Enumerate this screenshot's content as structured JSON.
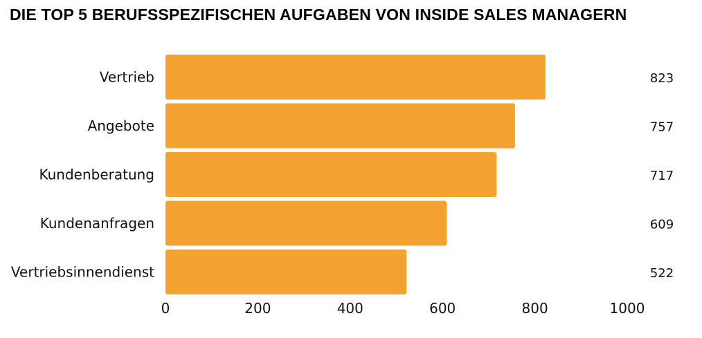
{
  "chart_data": {
    "type": "bar",
    "orientation": "horizontal",
    "title": "DIE TOP 5 BERUFSSPEZIFISCHEN AUFGABEN VON INSIDE SALES MANAGERN",
    "xlabel": "",
    "ylabel": "",
    "categories": [
      "Vertrieb",
      "Angebote",
      "Kundenberatung",
      "Kundenanfragen",
      "Vertriebsinnendienst"
    ],
    "values": [
      823,
      757,
      717,
      609,
      522
    ],
    "xlim": [
      0,
      1000
    ],
    "xticks": [
      0,
      200,
      400,
      600,
      800,
      1000
    ],
    "xtick_labels": [
      "0",
      "200",
      "400",
      "600",
      "800",
      "1000"
    ],
    "value_labels": [
      "823",
      "757",
      "717",
      "609",
      "522"
    ],
    "grid": false,
    "legend": "none",
    "bar_color": "#f2a330"
  }
}
